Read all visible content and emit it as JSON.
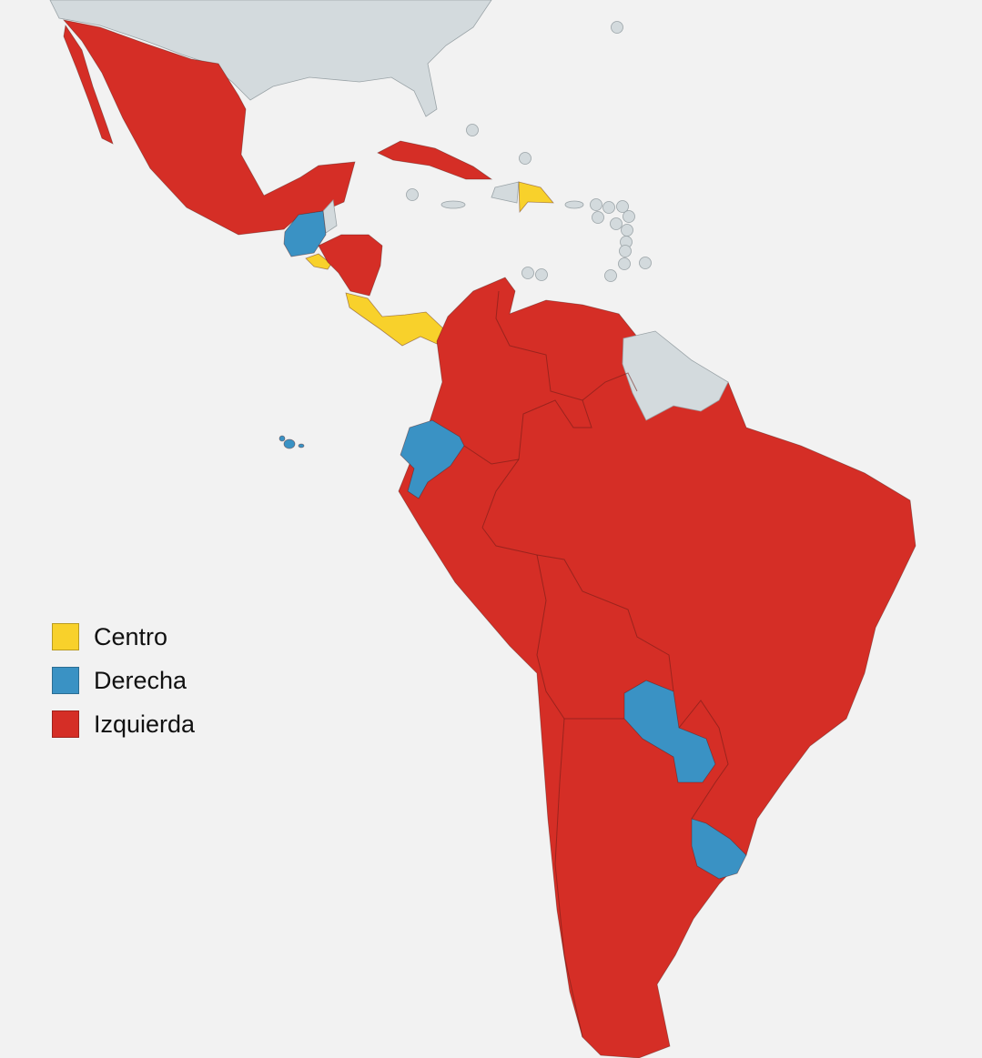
{
  "colors": {
    "background": "#f2f2f2",
    "no_data": "#d3dadd",
    "centro": "#f8d12b",
    "derecha": "#3a92c4",
    "izquierda": "#d52e26"
  },
  "legend": {
    "position": "left",
    "items": [
      {
        "label": "Centro",
        "color": "#f8d12b"
      },
      {
        "label": "Derecha",
        "color": "#3a92c4"
      },
      {
        "label": "Izquierda",
        "color": "#d52e26"
      }
    ]
  }
}
